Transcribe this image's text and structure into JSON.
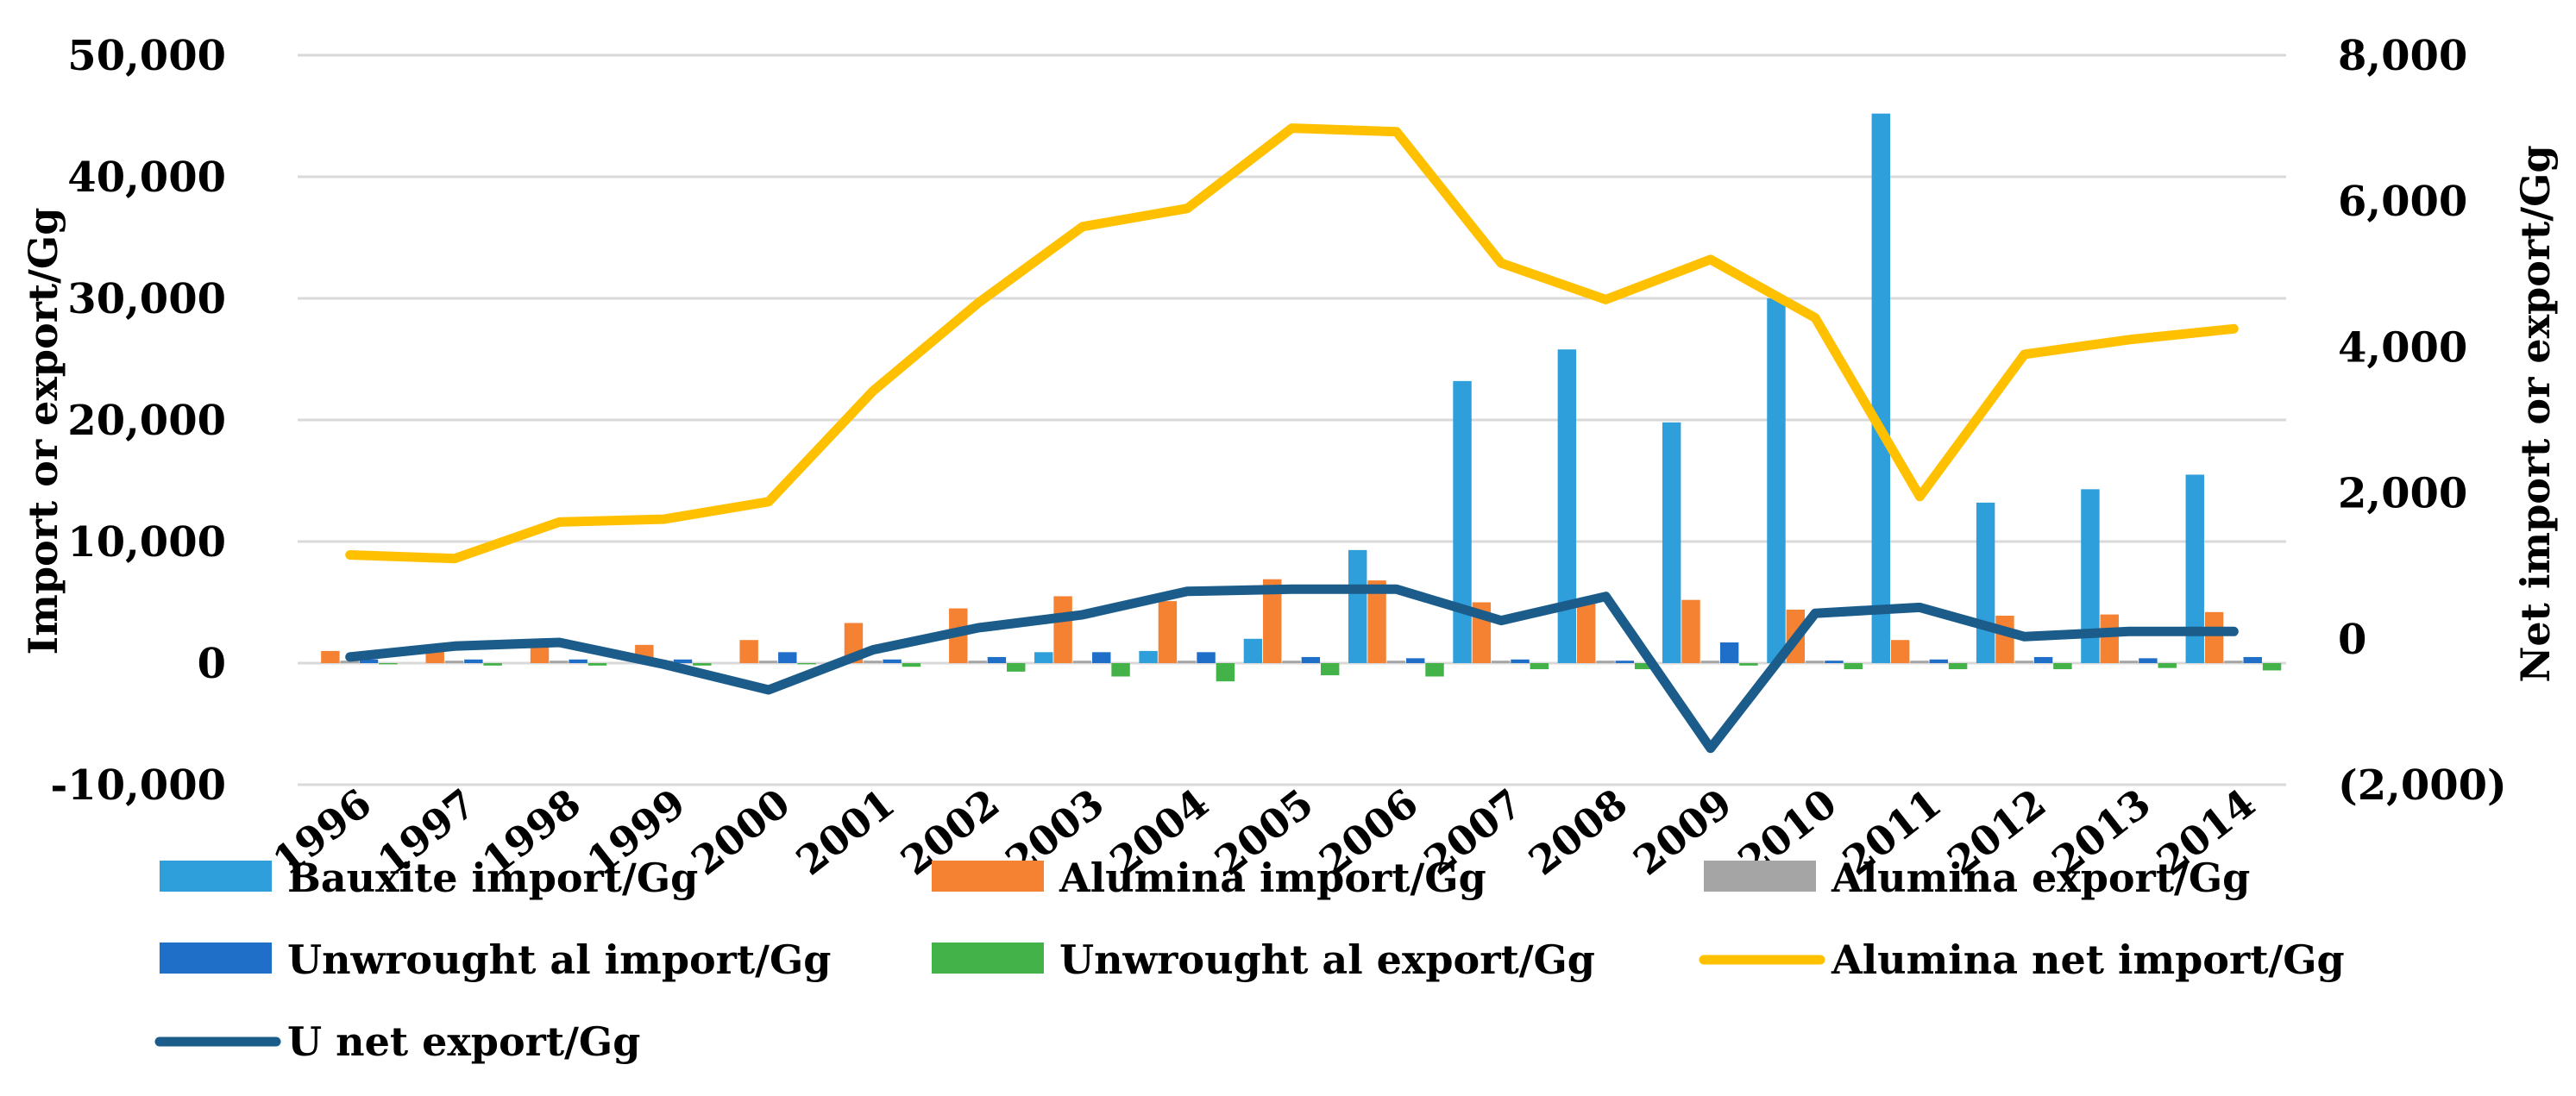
{
  "chart_data": {
    "type": "bar",
    "categories": [
      "1996",
      "1997",
      "1998",
      "1999",
      "2000",
      "2001",
      "2002",
      "2003",
      "2004",
      "2005",
      "2006",
      "2007",
      "2008",
      "2009",
      "2010",
      "2011",
      "2012",
      "2013",
      "2014"
    ],
    "series": [
      {
        "name": "Bauxite import/Gg",
        "type": "bar",
        "axis": "left",
        "color": "#2E9FDB",
        "values": [
          0,
          0,
          0,
          0,
          0,
          0,
          0,
          900,
          1000,
          2000,
          9300,
          23200,
          25800,
          19800,
          30000,
          45200,
          13200,
          14300,
          15500
        ]
      },
      {
        "name": "Alumina import/Gg",
        "type": "bar",
        "axis": "left",
        "color": "#F58233",
        "values": [
          1000,
          1000,
          1400,
          1500,
          1900,
          3300,
          4500,
          5500,
          5100,
          6900,
          6800,
          5000,
          5000,
          5200,
          4400,
          1900,
          3900,
          4000,
          4200
        ]
      },
      {
        "name": "Alumina export/Gg",
        "type": "bar",
        "axis": "left",
        "color": "#A5A5A5",
        "values": [
          200,
          200,
          200,
          200,
          200,
          200,
          200,
          200,
          200,
          200,
          200,
          200,
          200,
          200,
          200,
          200,
          200,
          200,
          200
        ]
      },
      {
        "name": "Unwrought al import/Gg",
        "type": "bar",
        "axis": "left",
        "color": "#1F6FC9",
        "values": [
          300,
          300,
          300,
          300,
          900,
          300,
          500,
          900,
          900,
          500,
          400,
          300,
          200,
          1700,
          200,
          300,
          500,
          400,
          500
        ]
      },
      {
        "name": "Unwrought al export/Gg",
        "type": "bar",
        "axis": "left",
        "color": "#43B248",
        "values": [
          -100,
          -200,
          -200,
          -200,
          -100,
          -300,
          -700,
          -1100,
          -1500,
          -1000,
          -1100,
          -500,
          -500,
          -200,
          -500,
          -500,
          -500,
          -400,
          -600
        ]
      },
      {
        "name": "Alumina net import/Gg",
        "type": "line",
        "axis": "right",
        "color": "#FFC000",
        "values": [
          1150,
          1100,
          1600,
          1640,
          1880,
          3400,
          4600,
          5650,
          5900,
          7000,
          6950,
          5150,
          4650,
          5200,
          4400,
          1950,
          3900,
          4100,
          4250
        ]
      },
      {
        "name": "U net export/Gg",
        "type": "line",
        "axis": "right",
        "color": "#1B5C8A",
        "values": [
          -250,
          -100,
          -50,
          -350,
          -700,
          -150,
          150,
          330,
          650,
          680,
          680,
          250,
          580,
          -1500,
          350,
          430,
          30,
          100,
          100
        ]
      }
    ],
    "y_left": {
      "label": "Import or export/Gg",
      "range": [
        -10000,
        50000
      ],
      "ticks": [
        {
          "value": 50000,
          "text": "50,000"
        },
        {
          "value": 40000,
          "text": "40,000"
        },
        {
          "value": 30000,
          "text": "30,000"
        },
        {
          "value": 20000,
          "text": "20,000"
        },
        {
          "value": 10000,
          "text": "10,000"
        },
        {
          "value": 0,
          "text": "0"
        },
        {
          "value": -10000,
          "text": "-10,000",
          "color": "#FF0000"
        }
      ]
    },
    "y_right": {
      "label": "Net import or export/Gg",
      "range": [
        -2000,
        8000
      ],
      "ticks": [
        {
          "value": 8000,
          "text": "8,000"
        },
        {
          "value": 6000,
          "text": "6,000"
        },
        {
          "value": 4000,
          "text": "4,000"
        },
        {
          "value": 2000,
          "text": "2,000"
        },
        {
          "value": 0,
          "text": "0"
        },
        {
          "value": -2000,
          "text": "(2,000)",
          "color": "#FF0000"
        }
      ]
    },
    "grid": true,
    "legend_position": "bottom"
  }
}
